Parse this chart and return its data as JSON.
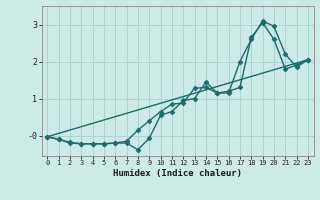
{
  "xlabel": "Humidex (Indice chaleur)",
  "background_color": "#cceae8",
  "grid_color": "#aacfcd",
  "line_color": "#1e6b6b",
  "xlim": [
    -0.5,
    23.5
  ],
  "ylim": [
    -0.55,
    3.5
  ],
  "yticks": [
    0,
    1,
    2,
    3
  ],
  "ytick_labels": [
    "-0",
    "1",
    "2",
    "3"
  ],
  "xticks": [
    0,
    1,
    2,
    3,
    4,
    5,
    6,
    7,
    8,
    9,
    10,
    11,
    12,
    13,
    14,
    15,
    16,
    17,
    18,
    19,
    20,
    21,
    22,
    23
  ],
  "line1_x": [
    0,
    1,
    2,
    3,
    4,
    5,
    6,
    7,
    8,
    9,
    10,
    11,
    12,
    13,
    14,
    15,
    16,
    17,
    18,
    19,
    20,
    21,
    22,
    23
  ],
  "line1_y": [
    -0.03,
    -0.1,
    -0.2,
    -0.22,
    -0.22,
    -0.22,
    -0.2,
    -0.2,
    -0.38,
    -0.07,
    0.55,
    0.65,
    0.95,
    1.0,
    1.45,
    1.15,
    1.15,
    2.0,
    2.6,
    3.1,
    2.95,
    2.2,
    1.85,
    2.05
  ],
  "line2_x": [
    0,
    1,
    2,
    3,
    4,
    5,
    6,
    7,
    8,
    9,
    10,
    11,
    12,
    13,
    14,
    15,
    16,
    17,
    18,
    19,
    20,
    21,
    22,
    23
  ],
  "line2_y": [
    -0.03,
    -0.1,
    -0.18,
    -0.22,
    -0.22,
    -0.22,
    -0.2,
    -0.15,
    0.15,
    0.4,
    0.65,
    0.85,
    0.88,
    1.28,
    1.3,
    1.15,
    1.2,
    1.3,
    2.65,
    3.05,
    2.6,
    1.8,
    1.9,
    2.05
  ],
  "line3_x": [
    0,
    23
  ],
  "line3_y": [
    -0.03,
    2.05
  ],
  "marker": "D",
  "markersize": 2.5,
  "linewidth": 1.0
}
